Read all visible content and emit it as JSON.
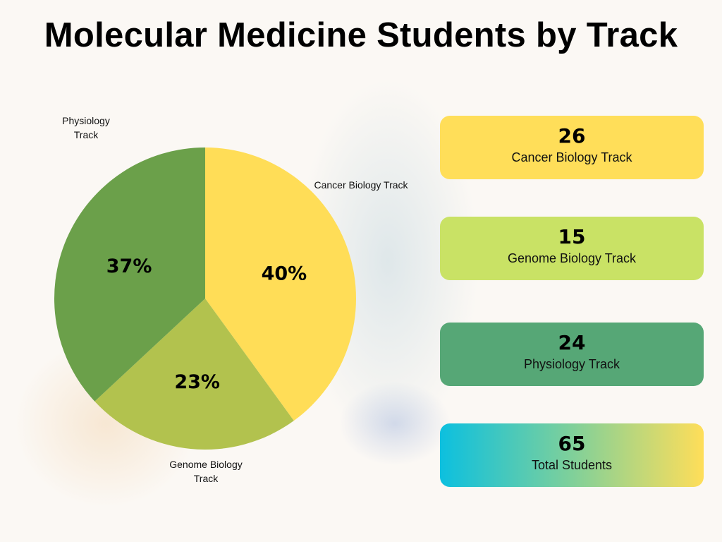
{
  "title": "Molecular Medicine Students by Track",
  "chart_data": {
    "type": "pie",
    "title": "Molecular Medicine Students by Track",
    "slices": [
      {
        "label": "Cancer Biology Track",
        "value": 26,
        "percent_label": "40%",
        "color": "#FFDD57"
      },
      {
        "label": "Genome Biology Track",
        "value": 15,
        "percent_label": "23%",
        "color": "#B2C24E"
      },
      {
        "label": "Physiology Track",
        "value": 24,
        "percent_label": "37%",
        "color": "#6BA04A"
      }
    ]
  },
  "cards": [
    {
      "value": "26",
      "label": "Cancer Biology Track",
      "color": "#FFDE59"
    },
    {
      "value": "15",
      "label": "Genome Biology Track",
      "color": "#C9E265"
    },
    {
      "value": "24",
      "label": "Physiology Track",
      "color": "#56A776"
    },
    {
      "value": "65",
      "label": "Total Students",
      "gradient": [
        "#0CC0DF",
        "#FFDE59"
      ]
    }
  ]
}
